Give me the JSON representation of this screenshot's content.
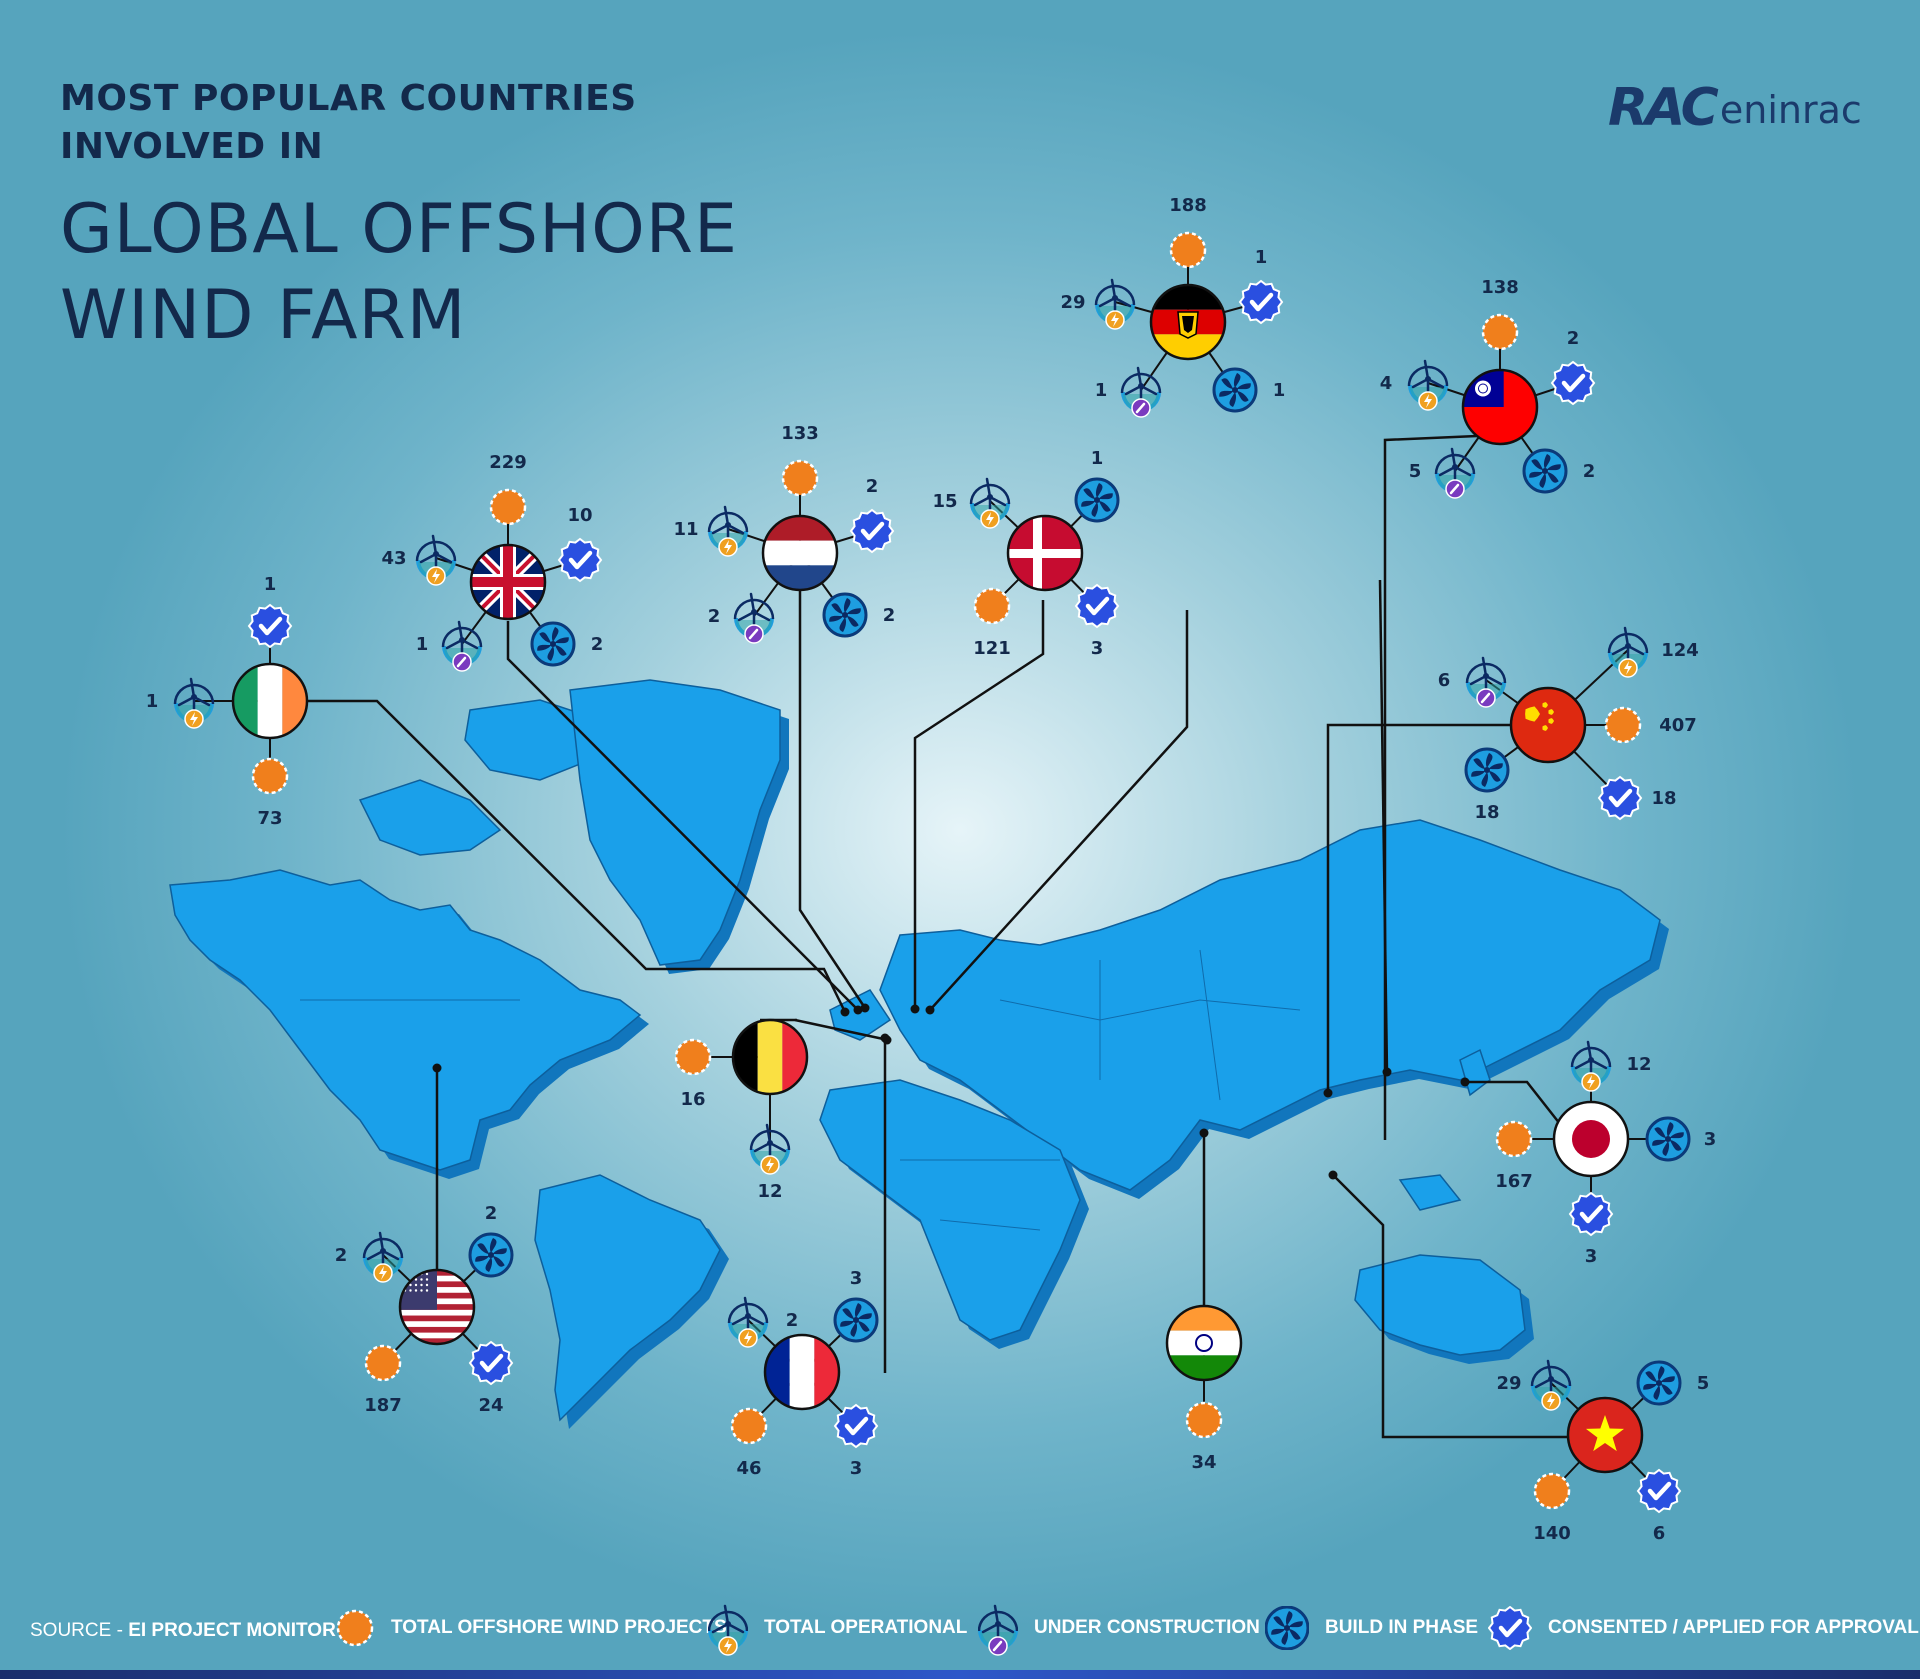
{
  "title": {
    "line1": "MOST POPULAR COUNTRIES",
    "line2": "INVOLVED IN",
    "line3": "GLOBAL OFFSHORE",
    "line4": "WIND FARM"
  },
  "logo": {
    "part1": "RAC",
    "part2": "eninrac"
  },
  "colors": {
    "navy": "#13294b",
    "total_projects": "#f07f1c",
    "consented": "#2a4fe0",
    "build_in": "#1e9ee0",
    "operational_badge": "#f0a020",
    "construction_badge": "#7a3bbf",
    "land": "#1aa0ea"
  },
  "countries": [
    {
      "name": "Germany",
      "flag": "germany",
      "total": "188",
      "operational": "29",
      "construction": "1",
      "build_in": "1",
      "consented": "1"
    },
    {
      "name": "Taiwan",
      "flag": "taiwan",
      "total": "138",
      "operational": "4",
      "construction": "5",
      "build_in": "2",
      "consented": "2"
    },
    {
      "name": "Netherlands",
      "flag": "netherlands",
      "total": "133",
      "operational": "11",
      "construction": "2",
      "build_in": "2",
      "consented": "2"
    },
    {
      "name": "Denmark",
      "flag": "denmark",
      "total": "121",
      "operational": "15",
      "construction": "",
      "build_in": "1",
      "consented": "3"
    },
    {
      "name": "United Kingdom",
      "flag": "uk",
      "total": "229",
      "operational": "43",
      "construction": "1",
      "build_in": "2",
      "consented": "10"
    },
    {
      "name": "Ireland",
      "flag": "ireland",
      "total": "73",
      "operational": "1",
      "construction": "",
      "build_in": "",
      "consented": "1"
    },
    {
      "name": "China",
      "flag": "china",
      "total": "407",
      "operational": "124",
      "construction": "6",
      "build_in": "18",
      "consented": "18"
    },
    {
      "name": "Belgium",
      "flag": "belgium",
      "total": "16",
      "operational": "12",
      "construction": "",
      "build_in": "",
      "consented": ""
    },
    {
      "name": "Japan",
      "flag": "japan",
      "total": "167",
      "operational": "12",
      "construction": "",
      "build_in": "3",
      "consented": "3"
    },
    {
      "name": "United States",
      "flag": "usa",
      "total": "187",
      "operational": "2",
      "construction": "",
      "build_in": "2",
      "consented": "24"
    },
    {
      "name": "France",
      "flag": "france",
      "total": "46",
      "operational": "2",
      "construction": "",
      "build_in": "3",
      "consented": "3"
    },
    {
      "name": "India",
      "flag": "india",
      "total": "34",
      "operational": "",
      "construction": "",
      "build_in": "",
      "consented": ""
    },
    {
      "name": "Vietnam",
      "flag": "vietnam",
      "total": "140",
      "operational": "29",
      "construction": "",
      "build_in": "5",
      "consented": "6"
    }
  ],
  "legend": {
    "source_label": "SOURCE - ",
    "source_value": "EI PROJECT MONITOR",
    "total_projects": "TOTAL OFFSHORE WIND PROJECTS",
    "total_operational": "TOTAL OPERATIONAL",
    "under_construction": "UNDER CONSTRUCTION",
    "build_in_phase": "BUILD IN PHASE",
    "consented": "CONSENTED / APPLIED FOR APPROVAL"
  }
}
